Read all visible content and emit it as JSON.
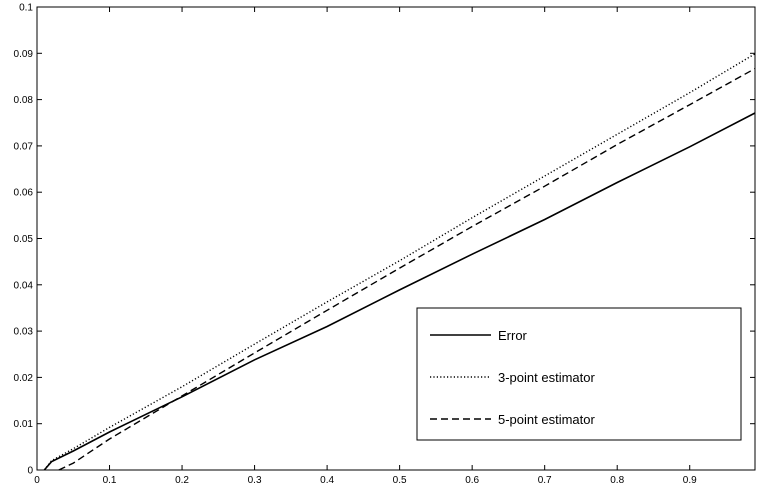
{
  "chart_data": {
    "type": "line",
    "title": "",
    "xlabel": "",
    "ylabel": "",
    "xlim": [
      0,
      0.99
    ],
    "ylim": [
      0,
      0.1
    ],
    "xticks": [
      "0",
      "0.1",
      "0.2",
      "0.3",
      "0.4",
      "0.5",
      "0.6",
      "0.7",
      "0.8",
      "0.9"
    ],
    "xtick_values": [
      0,
      0.1,
      0.2,
      0.3,
      0.4,
      0.5,
      0.6,
      0.7,
      0.8,
      0.9
    ],
    "yticks": [
      "0",
      "0.01",
      "0.02",
      "0.03",
      "0.04",
      "0.05",
      "0.06",
      "0.07",
      "0.08",
      "0.09",
      "0.1"
    ],
    "ytick_values": [
      0,
      0.01,
      0.02,
      0.03,
      0.04,
      0.05,
      0.06,
      0.07,
      0.08,
      0.09,
      0.1
    ],
    "grid": false,
    "legend_position": "bottom-right",
    "series": [
      {
        "name": "Error",
        "style": "solid",
        "color": "#000000",
        "x": [
          0.01,
          0.02,
          0.05,
          0.1,
          0.2,
          0.3,
          0.4,
          0.5,
          0.6,
          0.7,
          0.8,
          0.9,
          0.99
        ],
        "y": [
          0.0,
          0.0018,
          0.0041,
          0.0082,
          0.0158,
          0.0238,
          0.031,
          0.0389,
          0.0466,
          0.0541,
          0.0621,
          0.0698,
          0.0771
        ]
      },
      {
        "name": "3-point estimator",
        "style": "dotted",
        "color": "#000000",
        "x": [
          0.01,
          0.02,
          0.05,
          0.1,
          0.2,
          0.3,
          0.4,
          0.5,
          0.6,
          0.7,
          0.8,
          0.9,
          0.99
        ],
        "y": [
          0.0,
          0.002,
          0.0046,
          0.0092,
          0.018,
          0.0272,
          0.0363,
          0.0452,
          0.0545,
          0.0635,
          0.0725,
          0.0815,
          0.0899
        ]
      },
      {
        "name": "5-point estimator",
        "style": "dashed",
        "color": "#000000",
        "x": [
          0.03,
          0.05,
          0.1,
          0.2,
          0.3,
          0.4,
          0.5,
          0.6,
          0.7,
          0.8,
          0.9,
          0.99
        ],
        "y": [
          0.0,
          0.0015,
          0.0067,
          0.016,
          0.0253,
          0.0345,
          0.0436,
          0.0526,
          0.0613,
          0.0703,
          0.0789,
          0.0867
        ]
      }
    ]
  }
}
